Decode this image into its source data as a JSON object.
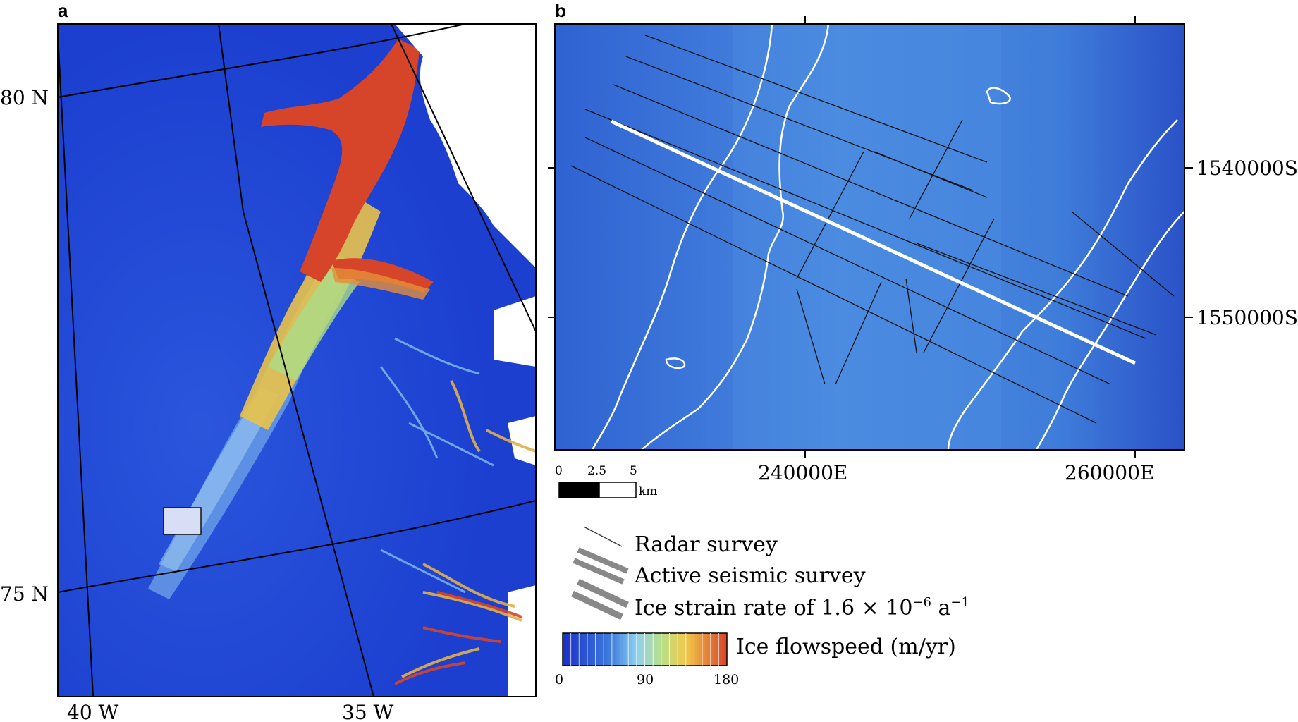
{
  "panel_a": {
    "letter": "a",
    "lat_labels": [
      "80 N",
      "75 N"
    ],
    "lon_labels": [
      "40 W",
      "35 W"
    ]
  },
  "panel_b": {
    "letter": "b",
    "northing_labels": [
      "1540000S",
      "1550000S"
    ],
    "easting_labels": [
      "240000E",
      "260000E"
    ],
    "scale_bar": {
      "ticks": [
        "0",
        "2.5",
        "5"
      ],
      "unit": "km"
    }
  },
  "legend": {
    "radar": "Radar survey",
    "seismic": "Active seismic survey",
    "strain": "Ice strain rate of 1.6 × 10",
    "strain_exp": "−6",
    "strain_unit": " a",
    "strain_unit_exp": "−1",
    "flowspeed": "Ice flowspeed (m/yr)",
    "colorbar_ticks": [
      "0",
      "90",
      "180"
    ]
  },
  "colors": {
    "slow": "#1c3fd0",
    "fast": "#d6452a",
    "land": "#ffffff",
    "panel_b_bg": "#3b78d8"
  }
}
